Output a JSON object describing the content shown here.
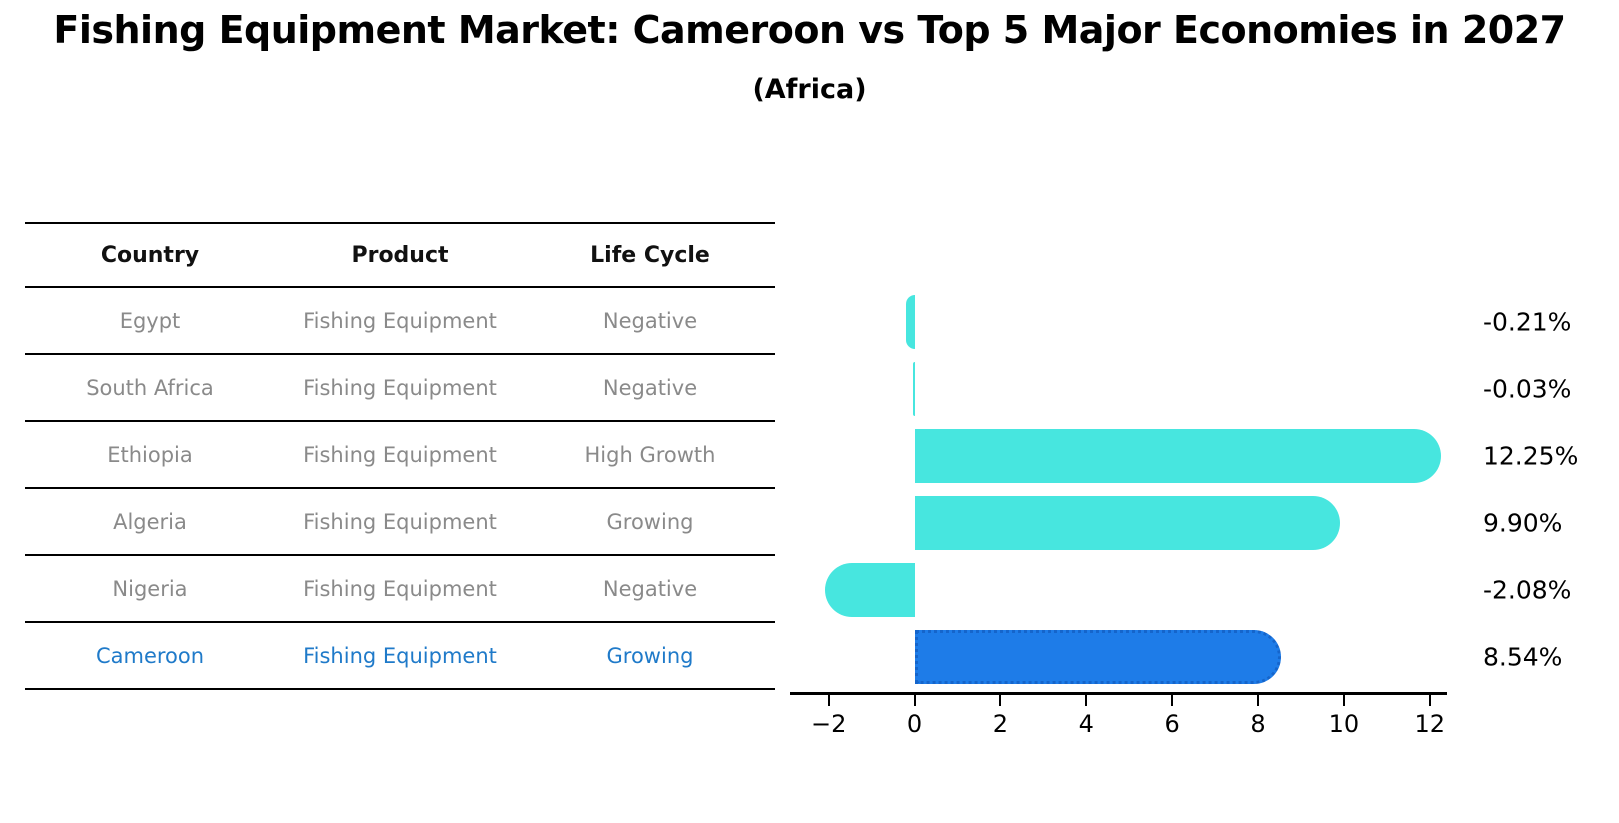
{
  "title": "Fishing Equipment Market: Cameroon vs Top 5 Major Economies in 2027",
  "subtitle": "(Africa)",
  "table": {
    "headers": [
      "Country",
      "Product",
      "Life Cycle"
    ],
    "rows": [
      {
        "country": "Egypt",
        "product": "Fishing Equipment",
        "life_cycle": "Negative"
      },
      {
        "country": "South Africa",
        "product": "Fishing Equipment",
        "life_cycle": "Negative"
      },
      {
        "country": "Ethiopia",
        "product": "Fishing Equipment",
        "life_cycle": "High Growth"
      },
      {
        "country": "Algeria",
        "product": "Fishing Equipment",
        "life_cycle": "Growing"
      },
      {
        "country": "Nigeria",
        "product": "Fishing Equipment",
        "life_cycle": "Negative"
      },
      {
        "country": "Cameroon",
        "product": "Fishing Equipment",
        "life_cycle": "Growing"
      }
    ],
    "highlighted_row": "Cameroon"
  },
  "chart_data": {
    "type": "bar",
    "orientation": "horizontal",
    "categories": [
      "Egypt",
      "South Africa",
      "Ethiopia",
      "Algeria",
      "Nigeria",
      "Cameroon"
    ],
    "values": [
      -0.21,
      -0.03,
      12.25,
      9.9,
      -2.08,
      8.54
    ],
    "value_labels": [
      "-0.21%",
      "-0.03%",
      "12.25%",
      "9.90%",
      "-2.08%",
      "8.54%"
    ],
    "highlight_index": 5,
    "xlim": [
      -2.9,
      12.4
    ],
    "x_ticks": [
      -2,
      0,
      2,
      4,
      6,
      8,
      10,
      12
    ],
    "x_tick_labels": [
      "−2",
      "0",
      "2",
      "4",
      "6",
      "8",
      "10",
      "12"
    ],
    "grid": false,
    "legend": false,
    "title": "Fishing Equipment Market: Cameroon vs Top 5 Major Economies in 2027",
    "subtitle": "(Africa)"
  },
  "colors": {
    "bar": "#47E6DF",
    "highlight_bar": "#1E7CE8",
    "highlight_bar_edge": "#1565CB",
    "highlight_text": "#1F7AC9",
    "table_text": "#8A8A8A",
    "header_text": "#111111",
    "axis": "#000000"
  }
}
